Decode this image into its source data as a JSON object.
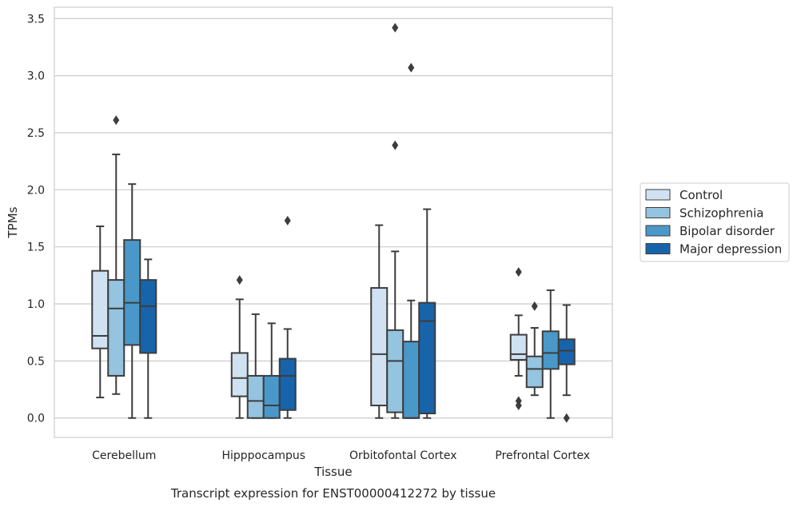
{
  "chart_data": {
    "type": "box",
    "title": "",
    "caption": "Transcript expression for ENST00000412272 by tissue",
    "xlabel": "Tissue",
    "ylabel": "TPMs",
    "ylim": [
      -0.17,
      3.6
    ],
    "yticks": [
      0.0,
      0.5,
      1.0,
      1.5,
      2.0,
      2.5,
      3.0,
      3.5
    ],
    "grid": "horizontal",
    "legend_position": "right",
    "categories": [
      "Cerebellum",
      "Hipppocampus",
      "Orbitofontal Cortex",
      "Prefrontal Cortex"
    ],
    "series": [
      {
        "name": "Control",
        "color": "#d0e1f2",
        "boxes": [
          {
            "whislo": 0.18,
            "q1": 0.61,
            "med": 0.72,
            "q3": 1.29,
            "whishi": 1.68,
            "fliers": []
          },
          {
            "whislo": 0.0,
            "q1": 0.19,
            "med": 0.35,
            "q3": 0.57,
            "whishi": 1.04,
            "fliers": [
              1.21
            ]
          },
          {
            "whislo": 0.0,
            "q1": 0.11,
            "med": 0.56,
            "q3": 1.14,
            "whishi": 1.69,
            "fliers": []
          },
          {
            "whislo": 0.37,
            "q1": 0.51,
            "med": 0.56,
            "q3": 0.73,
            "whishi": 0.9,
            "fliers": [
              1.28,
              0.15,
              0.11
            ]
          }
        ]
      },
      {
        "name": "Schizophrenia",
        "color": "#94c4df",
        "boxes": [
          {
            "whislo": 0.21,
            "q1": 0.37,
            "med": 0.96,
            "q3": 1.21,
            "whishi": 2.31,
            "fliers": [
              2.61
            ]
          },
          {
            "whislo": 0.0,
            "q1": 0.0,
            "med": 0.15,
            "q3": 0.37,
            "whishi": 0.91,
            "fliers": []
          },
          {
            "whislo": 0.0,
            "q1": 0.05,
            "med": 0.5,
            "q3": 0.77,
            "whishi": 1.46,
            "fliers": [
              3.42,
              2.39
            ]
          },
          {
            "whislo": 0.2,
            "q1": 0.27,
            "med": 0.43,
            "q3": 0.54,
            "whishi": 0.79,
            "fliers": [
              0.98
            ]
          }
        ]
      },
      {
        "name": "Bipolar disorder",
        "color": "#4a98c9",
        "boxes": [
          {
            "whislo": 0.0,
            "q1": 0.64,
            "med": 1.01,
            "q3": 1.56,
            "whishi": 2.05,
            "fliers": []
          },
          {
            "whislo": 0.0,
            "q1": 0.0,
            "med": 0.11,
            "q3": 0.37,
            "whishi": 0.83,
            "fliers": []
          },
          {
            "whislo": 0.0,
            "q1": 0.0,
            "med": 0.0,
            "q3": 0.67,
            "whishi": 1.03,
            "fliers": [
              3.07
            ]
          },
          {
            "whislo": 0.0,
            "q1": 0.43,
            "med": 0.57,
            "q3": 0.76,
            "whishi": 1.12,
            "fliers": []
          }
        ]
      },
      {
        "name": "Major depression",
        "color": "#1764ab",
        "boxes": [
          {
            "whislo": 0.0,
            "q1": 0.57,
            "med": 0.98,
            "q3": 1.21,
            "whishi": 1.39,
            "fliers": []
          },
          {
            "whislo": 0.0,
            "q1": 0.07,
            "med": 0.37,
            "q3": 0.52,
            "whishi": 0.78,
            "fliers": [
              1.73
            ]
          },
          {
            "whislo": 0.0,
            "q1": 0.04,
            "med": 0.85,
            "q3": 1.01,
            "whishi": 1.83,
            "fliers": []
          },
          {
            "whislo": 0.2,
            "q1": 0.47,
            "med": 0.59,
            "q3": 0.69,
            "whishi": 0.99,
            "fliers": [
              0.0
            ]
          }
        ]
      }
    ]
  }
}
